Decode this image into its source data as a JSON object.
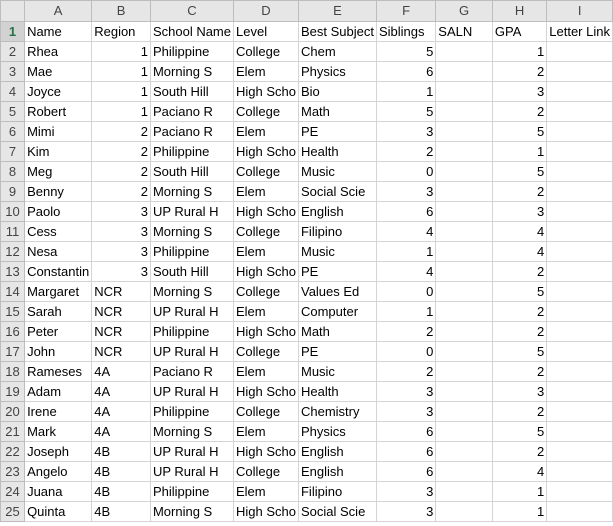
{
  "columns": [
    "A",
    "B",
    "C",
    "D",
    "E",
    "F",
    "G",
    "H",
    "I"
  ],
  "rows": [
    {
      "n": "1",
      "cells": [
        "Name",
        "Region",
        "School Name",
        "Level",
        "Best Subject",
        "Siblings",
        "SALN",
        "GPA",
        "Letter Link"
      ]
    },
    {
      "n": "2",
      "cells": [
        "Rhea",
        "1",
        "Philippine",
        "College",
        "Chem",
        "5",
        "",
        "1",
        ""
      ]
    },
    {
      "n": "3",
      "cells": [
        "Mae",
        "1",
        "Morning S",
        "Elem",
        "Physics",
        "6",
        "",
        "2",
        ""
      ]
    },
    {
      "n": "4",
      "cells": [
        "Joyce",
        "1",
        "South Hill",
        "High Scho",
        "Bio",
        "1",
        "",
        "3",
        ""
      ]
    },
    {
      "n": "5",
      "cells": [
        "Robert",
        "1",
        "Paciano R",
        "College",
        "Math",
        "5",
        "",
        "2",
        ""
      ]
    },
    {
      "n": "6",
      "cells": [
        "Mimi",
        "2",
        "Paciano R",
        "Elem",
        "PE",
        "3",
        "",
        "5",
        ""
      ]
    },
    {
      "n": "7",
      "cells": [
        "Kim",
        "2",
        "Philippine",
        "High Scho",
        "Health",
        "2",
        "",
        "1",
        ""
      ]
    },
    {
      "n": "8",
      "cells": [
        "Meg",
        "2",
        "South Hill",
        "College",
        "Music",
        "0",
        "",
        "5",
        ""
      ]
    },
    {
      "n": "9",
      "cells": [
        "Benny",
        "2",
        "Morning S",
        "Elem",
        "Social Scie",
        "3",
        "",
        "2",
        ""
      ]
    },
    {
      "n": "10",
      "cells": [
        "Paolo",
        "3",
        "UP Rural H",
        "High Scho",
        "English",
        "6",
        "",
        "3",
        ""
      ]
    },
    {
      "n": "11",
      "cells": [
        "Cess",
        "3",
        "Morning S",
        "College",
        "Filipino",
        "4",
        "",
        "4",
        ""
      ]
    },
    {
      "n": "12",
      "cells": [
        "Nesa",
        "3",
        "Philippine",
        "Elem",
        "Music",
        "1",
        "",
        "4",
        ""
      ]
    },
    {
      "n": "13",
      "cells": [
        "Constantin",
        "3",
        "South Hill",
        "High Scho",
        "PE",
        "4",
        "",
        "2",
        ""
      ]
    },
    {
      "n": "14",
      "cells": [
        "Margaret",
        "NCR",
        "Morning S",
        "College",
        "Values Ed",
        "0",
        "",
        "5",
        ""
      ]
    },
    {
      "n": "15",
      "cells": [
        "Sarah",
        "NCR",
        "UP Rural H",
        "Elem",
        "Computer",
        "1",
        "",
        "2",
        ""
      ]
    },
    {
      "n": "16",
      "cells": [
        "Peter",
        "NCR",
        "Philippine",
        "High Scho",
        "Math",
        "2",
        "",
        "2",
        ""
      ]
    },
    {
      "n": "17",
      "cells": [
        "John",
        "NCR",
        "UP Rural H",
        "College",
        "PE",
        "0",
        "",
        "5",
        ""
      ]
    },
    {
      "n": "18",
      "cells": [
        "Rameses",
        "4A",
        "Paciano R",
        "Elem",
        "Music",
        "2",
        "",
        "2",
        ""
      ]
    },
    {
      "n": "19",
      "cells": [
        "Adam",
        "4A",
        "UP Rural H",
        "High Scho",
        "Health",
        "3",
        "",
        "3",
        ""
      ]
    },
    {
      "n": "20",
      "cells": [
        "Irene",
        "4A",
        "Philippine",
        "College",
        "Chemistry",
        "3",
        "",
        "2",
        ""
      ]
    },
    {
      "n": "21",
      "cells": [
        "Mark",
        "4A",
        "Morning S",
        "Elem",
        "Physics",
        "6",
        "",
        "5",
        ""
      ]
    },
    {
      "n": "22",
      "cells": [
        "Joseph",
        "4B",
        "UP Rural H",
        "High Scho",
        "English",
        "6",
        "",
        "2",
        ""
      ]
    },
    {
      "n": "23",
      "cells": [
        "Angelo",
        "4B",
        "UP Rural H",
        "College",
        "English",
        "6",
        "",
        "4",
        ""
      ]
    },
    {
      "n": "24",
      "cells": [
        "Juana",
        "4B",
        "Philippine",
        "Elem",
        "Filipino",
        "3",
        "",
        "1",
        ""
      ]
    },
    {
      "n": "25",
      "cells": [
        "Quinta",
        "4B",
        "Morning S",
        "High Scho",
        "Social Scie",
        "3",
        "",
        "1",
        ""
      ]
    }
  ]
}
